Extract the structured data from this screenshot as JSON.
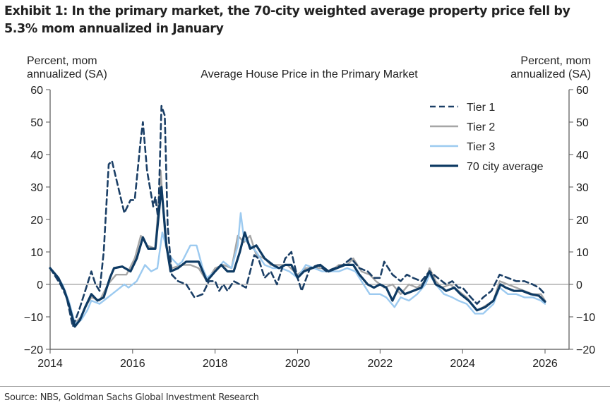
{
  "exhibit": {
    "title": "Exhibit 1: In the primary market, the 70-city weighted average property price fell by 5.3% mom annualized in January",
    "source": "Source: NBS, Goldman Sachs Global Investment Research"
  },
  "chart_data": {
    "type": "line",
    "title": "Average House Price in the Primary Market",
    "ylabel_left": [
      "Percent, mom",
      "annualized (SA)"
    ],
    "ylabel_right": [
      "Percent, mom",
      "annualized (SA)"
    ],
    "xlabel": "",
    "xlim": [
      2014,
      2026.7
    ],
    "ylim": [
      -20,
      60
    ],
    "x_ticks": [
      2014,
      2016,
      2018,
      2020,
      2022,
      2024,
      2026
    ],
    "x_tick_labels": [
      "2014",
      "2016",
      "2018",
      "2020",
      "2022",
      "2024",
      "2026"
    ],
    "y_ticks": [
      -20,
      -10,
      0,
      10,
      20,
      30,
      40,
      50,
      60
    ],
    "y_tick_labels": [
      "−20",
      "−10",
      "0",
      "10",
      "20",
      "30",
      "40",
      "50",
      "60"
    ],
    "legend_position": "top-right",
    "grid": false,
    "zero_line": true,
    "series": [
      {
        "name": "Tier 1",
        "color": "#1b3f66",
        "style": "dashed",
        "points": [
          [
            2014.0,
            5
          ],
          [
            2014.25,
            0
          ],
          [
            2014.4,
            -4
          ],
          [
            2014.55,
            -13
          ],
          [
            2014.7,
            -8
          ],
          [
            2014.9,
            0
          ],
          [
            2015.0,
            4
          ],
          [
            2015.1,
            0
          ],
          [
            2015.2,
            -2
          ],
          [
            2015.3,
            10
          ],
          [
            2015.42,
            37
          ],
          [
            2015.5,
            38
          ],
          [
            2015.65,
            30
          ],
          [
            2015.8,
            22
          ],
          [
            2015.95,
            26
          ],
          [
            2016.05,
            26
          ],
          [
            2016.2,
            45
          ],
          [
            2016.25,
            50
          ],
          [
            2016.35,
            35
          ],
          [
            2016.5,
            24
          ],
          [
            2016.55,
            27
          ],
          [
            2016.62,
            20
          ],
          [
            2016.7,
            55
          ],
          [
            2016.78,
            52
          ],
          [
            2016.85,
            18
          ],
          [
            2016.95,
            3
          ],
          [
            2017.1,
            1
          ],
          [
            2017.3,
            0
          ],
          [
            2017.5,
            -4
          ],
          [
            2017.7,
            -3
          ],
          [
            2017.85,
            1
          ],
          [
            2018.0,
            1
          ],
          [
            2018.1,
            -2
          ],
          [
            2018.2,
            0
          ],
          [
            2018.3,
            -2
          ],
          [
            2018.45,
            1
          ],
          [
            2018.6,
            0
          ],
          [
            2018.75,
            -1
          ],
          [
            2018.95,
            9
          ],
          [
            2019.05,
            8
          ],
          [
            2019.2,
            2
          ],
          [
            2019.35,
            4
          ],
          [
            2019.5,
            0
          ],
          [
            2019.7,
            8
          ],
          [
            2019.85,
            10
          ],
          [
            2020.0,
            2
          ],
          [
            2020.1,
            -2
          ],
          [
            2020.3,
            5
          ],
          [
            2020.5,
            6
          ],
          [
            2020.7,
            4
          ],
          [
            2020.9,
            5
          ],
          [
            2021.1,
            6
          ],
          [
            2021.3,
            8
          ],
          [
            2021.5,
            5
          ],
          [
            2021.7,
            4
          ],
          [
            2021.85,
            2
          ],
          [
            2022.0,
            2
          ],
          [
            2022.1,
            7
          ],
          [
            2022.3,
            3
          ],
          [
            2022.5,
            1
          ],
          [
            2022.65,
            3
          ],
          [
            2022.8,
            2
          ],
          [
            2023.0,
            1
          ],
          [
            2023.2,
            4
          ],
          [
            2023.4,
            2
          ],
          [
            2023.6,
            0
          ],
          [
            2023.75,
            1
          ],
          [
            2023.9,
            -1
          ],
          [
            2024.0,
            -1
          ],
          [
            2024.2,
            -4
          ],
          [
            2024.35,
            -6
          ],
          [
            2024.5,
            -4
          ],
          [
            2024.7,
            -2
          ],
          [
            2024.9,
            3
          ],
          [
            2025.1,
            2
          ],
          [
            2025.3,
            1
          ],
          [
            2025.5,
            1
          ],
          [
            2025.7,
            0
          ],
          [
            2025.85,
            -1
          ],
          [
            2026.0,
            -3
          ]
        ]
      },
      {
        "name": "Tier 2",
        "color": "#a6a6a6",
        "style": "solid",
        "points": [
          [
            2014.0,
            5
          ],
          [
            2014.3,
            0
          ],
          [
            2014.45,
            -6
          ],
          [
            2014.6,
            -12
          ],
          [
            2014.75,
            -10
          ],
          [
            2014.9,
            -6
          ],
          [
            2015.0,
            -4
          ],
          [
            2015.2,
            -5
          ],
          [
            2015.4,
            0
          ],
          [
            2015.6,
            3
          ],
          [
            2015.85,
            3
          ],
          [
            2016.05,
            8
          ],
          [
            2016.2,
            15
          ],
          [
            2016.35,
            12
          ],
          [
            2016.55,
            11
          ],
          [
            2016.68,
            35
          ],
          [
            2016.8,
            12
          ],
          [
            2016.95,
            5
          ],
          [
            2017.2,
            6
          ],
          [
            2017.4,
            6
          ],
          [
            2017.6,
            5
          ],
          [
            2017.8,
            1
          ],
          [
            2018.0,
            5
          ],
          [
            2018.2,
            6
          ],
          [
            2018.4,
            5
          ],
          [
            2018.55,
            15
          ],
          [
            2018.7,
            13
          ],
          [
            2018.85,
            15
          ],
          [
            2019.0,
            9
          ],
          [
            2019.2,
            8
          ],
          [
            2019.35,
            6
          ],
          [
            2019.55,
            6
          ],
          [
            2019.75,
            6
          ],
          [
            2020.0,
            3
          ],
          [
            2020.2,
            5
          ],
          [
            2020.4,
            5
          ],
          [
            2020.6,
            5
          ],
          [
            2020.8,
            4
          ],
          [
            2021.0,
            6
          ],
          [
            2021.2,
            6
          ],
          [
            2021.35,
            8
          ],
          [
            2021.55,
            4
          ],
          [
            2021.75,
            3
          ],
          [
            2021.9,
            1
          ],
          [
            2022.1,
            -1
          ],
          [
            2022.3,
            0
          ],
          [
            2022.5,
            -3
          ],
          [
            2022.7,
            0
          ],
          [
            2022.9,
            -1
          ],
          [
            2023.1,
            1
          ],
          [
            2023.2,
            5
          ],
          [
            2023.35,
            1
          ],
          [
            2023.5,
            -1
          ],
          [
            2023.7,
            0
          ],
          [
            2023.9,
            -2
          ],
          [
            2024.1,
            -4
          ],
          [
            2024.35,
            -8
          ],
          [
            2024.5,
            -7
          ],
          [
            2024.75,
            -5
          ],
          [
            2024.9,
            1
          ],
          [
            2025.1,
            0
          ],
          [
            2025.3,
            -1
          ],
          [
            2025.5,
            -2
          ],
          [
            2025.7,
            -3
          ],
          [
            2025.9,
            -3
          ],
          [
            2026.0,
            -5
          ]
        ]
      },
      {
        "name": "Tier 3",
        "color": "#9ccaf0",
        "style": "solid",
        "points": [
          [
            2014.0,
            5
          ],
          [
            2014.3,
            0
          ],
          [
            2014.45,
            -5
          ],
          [
            2014.6,
            -12
          ],
          [
            2014.75,
            -11
          ],
          [
            2014.9,
            -8
          ],
          [
            2015.0,
            -5
          ],
          [
            2015.2,
            -6
          ],
          [
            2015.4,
            -4
          ],
          [
            2015.6,
            -2
          ],
          [
            2015.8,
            0
          ],
          [
            2015.9,
            -1
          ],
          [
            2016.1,
            1
          ],
          [
            2016.3,
            6
          ],
          [
            2016.45,
            4
          ],
          [
            2016.6,
            5
          ],
          [
            2016.72,
            16
          ],
          [
            2016.85,
            10
          ],
          [
            2016.95,
            8
          ],
          [
            2017.1,
            6
          ],
          [
            2017.2,
            7
          ],
          [
            2017.4,
            12
          ],
          [
            2017.55,
            12
          ],
          [
            2017.7,
            5
          ],
          [
            2017.8,
            2
          ],
          [
            2018.0,
            4
          ],
          [
            2018.2,
            7
          ],
          [
            2018.4,
            5
          ],
          [
            2018.55,
            12
          ],
          [
            2018.62,
            22
          ],
          [
            2018.7,
            14
          ],
          [
            2018.85,
            12
          ],
          [
            2019.0,
            10
          ],
          [
            2019.2,
            6
          ],
          [
            2019.4,
            5
          ],
          [
            2019.6,
            5
          ],
          [
            2019.8,
            4
          ],
          [
            2020.0,
            2
          ],
          [
            2020.2,
            6
          ],
          [
            2020.4,
            5
          ],
          [
            2020.6,
            4
          ],
          [
            2020.8,
            4
          ],
          [
            2021.0,
            4
          ],
          [
            2021.2,
            5
          ],
          [
            2021.4,
            4
          ],
          [
            2021.55,
            1
          ],
          [
            2021.75,
            -3
          ],
          [
            2022.0,
            -3
          ],
          [
            2022.15,
            -4
          ],
          [
            2022.35,
            -7
          ],
          [
            2022.5,
            -4
          ],
          [
            2022.7,
            -5
          ],
          [
            2022.9,
            -3
          ],
          [
            2023.1,
            0
          ],
          [
            2023.2,
            3
          ],
          [
            2023.35,
            0
          ],
          [
            2023.55,
            -3
          ],
          [
            2023.75,
            -4
          ],
          [
            2023.9,
            -5
          ],
          [
            2024.1,
            -6
          ],
          [
            2024.3,
            -9
          ],
          [
            2024.5,
            -9
          ],
          [
            2024.75,
            -6
          ],
          [
            2024.9,
            -1
          ],
          [
            2025.1,
            -3
          ],
          [
            2025.3,
            -3
          ],
          [
            2025.5,
            -4
          ],
          [
            2025.7,
            -4
          ],
          [
            2025.9,
            -5
          ],
          [
            2026.0,
            -6
          ]
        ]
      },
      {
        "name": "70 city average",
        "color": "#0e3a63",
        "style": "solid-thick",
        "points": [
          [
            2014.0,
            5
          ],
          [
            2014.2,
            2
          ],
          [
            2014.35,
            -2
          ],
          [
            2014.45,
            -6
          ],
          [
            2014.6,
            -13
          ],
          [
            2014.72,
            -11
          ],
          [
            2014.85,
            -7
          ],
          [
            2015.0,
            -3
          ],
          [
            2015.15,
            -5
          ],
          [
            2015.3,
            -4
          ],
          [
            2015.45,
            2
          ],
          [
            2015.55,
            5
          ],
          [
            2015.75,
            5.5
          ],
          [
            2015.95,
            4
          ],
          [
            2016.1,
            8
          ],
          [
            2016.25,
            14.5
          ],
          [
            2016.38,
            11
          ],
          [
            2016.55,
            11
          ],
          [
            2016.7,
            30
          ],
          [
            2016.82,
            12
          ],
          [
            2016.92,
            4
          ],
          [
            2017.1,
            5
          ],
          [
            2017.3,
            7
          ],
          [
            2017.6,
            7
          ],
          [
            2017.8,
            1
          ],
          [
            2018.0,
            4
          ],
          [
            2018.15,
            6
          ],
          [
            2018.3,
            4
          ],
          [
            2018.45,
            4
          ],
          [
            2018.6,
            10
          ],
          [
            2018.72,
            16
          ],
          [
            2018.85,
            11
          ],
          [
            2019.0,
            12
          ],
          [
            2019.2,
            8
          ],
          [
            2019.4,
            6
          ],
          [
            2019.55,
            5
          ],
          [
            2019.7,
            6
          ],
          [
            2019.85,
            6
          ],
          [
            2020.0,
            2
          ],
          [
            2020.15,
            4
          ],
          [
            2020.35,
            5
          ],
          [
            2020.55,
            6
          ],
          [
            2020.75,
            4
          ],
          [
            2020.95,
            5
          ],
          [
            2021.15,
            6
          ],
          [
            2021.35,
            6
          ],
          [
            2021.5,
            3
          ],
          [
            2021.7,
            0
          ],
          [
            2021.85,
            -1
          ],
          [
            2022.0,
            0
          ],
          [
            2022.15,
            -1
          ],
          [
            2022.3,
            -5
          ],
          [
            2022.45,
            -1
          ],
          [
            2022.6,
            -3
          ],
          [
            2022.8,
            -2
          ],
          [
            2023.0,
            -1
          ],
          [
            2023.2,
            4
          ],
          [
            2023.35,
            0
          ],
          [
            2023.5,
            -1
          ],
          [
            2023.6,
            -2
          ],
          [
            2023.8,
            -1
          ],
          [
            2023.95,
            -3
          ],
          [
            2024.15,
            -5
          ],
          [
            2024.35,
            -8
          ],
          [
            2024.55,
            -7
          ],
          [
            2024.75,
            -5
          ],
          [
            2024.92,
            0
          ],
          [
            2025.05,
            -1
          ],
          [
            2025.25,
            -2
          ],
          [
            2025.45,
            -2
          ],
          [
            2025.65,
            -3
          ],
          [
            2025.85,
            -3.5
          ],
          [
            2026.0,
            -5.3
          ]
        ]
      }
    ]
  }
}
